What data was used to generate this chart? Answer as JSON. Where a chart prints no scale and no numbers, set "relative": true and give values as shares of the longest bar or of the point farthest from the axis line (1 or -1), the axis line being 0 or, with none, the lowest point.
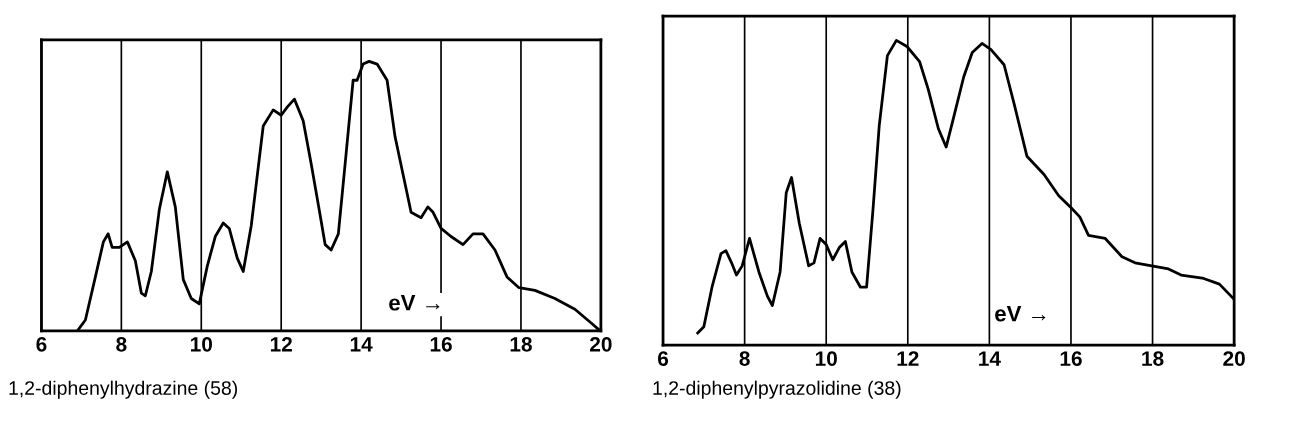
{
  "chart_data": [
    {
      "type": "line",
      "title": "1,2-diphenylhydrazine (58)",
      "relative": true,
      "xlim": [
        6,
        20
      ],
      "xticks": [
        6,
        8,
        10,
        12,
        14,
        16,
        18,
        20
      ],
      "grid": "x",
      "legend": false,
      "annotations": [
        "eV →"
      ],
      "series": [
        {
          "color": "#000000",
          "x": [
            6.9,
            7.1,
            7.35,
            7.55,
            7.67,
            7.77,
            7.95,
            8.15,
            8.35,
            8.5,
            8.6,
            8.75,
            8.95,
            9.15,
            9.35,
            9.55,
            9.75,
            9.95,
            10.15,
            10.35,
            10.55,
            10.7,
            10.9,
            11.05,
            11.25,
            11.55,
            11.8,
            12.0,
            12.15,
            12.33,
            12.55,
            12.75,
            12.95,
            13.1,
            13.25,
            13.43,
            13.6,
            13.8,
            13.9,
            14.05,
            14.2,
            14.4,
            14.65,
            14.85,
            15.05,
            15.25,
            15.5,
            15.67,
            15.8,
            16.0,
            16.25,
            16.55,
            16.8,
            17.05,
            17.35,
            17.65,
            17.95,
            18.35,
            18.85,
            19.35,
            19.75,
            19.95
          ],
          "values": [
            0,
            0.04,
            0.2,
            0.33,
            0.36,
            0.31,
            0.31,
            0.33,
            0.26,
            0.14,
            0.13,
            0.22,
            0.45,
            0.59,
            0.46,
            0.19,
            0.12,
            0.1,
            0.24,
            0.35,
            0.4,
            0.38,
            0.27,
            0.22,
            0.39,
            0.76,
            0.82,
            0.8,
            0.83,
            0.86,
            0.78,
            0.62,
            0.45,
            0.32,
            0.3,
            0.36,
            0.62,
            0.93,
            0.93,
            0.99,
            1.0,
            0.99,
            0.93,
            0.72,
            0.58,
            0.44,
            0.42,
            0.46,
            0.44,
            0.38,
            0.35,
            0.32,
            0.36,
            0.36,
            0.3,
            0.2,
            0.16,
            0.15,
            0.12,
            0.08,
            0.03,
            0.004
          ]
        }
      ]
    },
    {
      "type": "line",
      "title": "1,2-diphenylpyrazolidine (38)",
      "relative": true,
      "xlim": [
        6,
        20
      ],
      "xticks": [
        6,
        8,
        10,
        12,
        14,
        16,
        18,
        20
      ],
      "grid": "x",
      "legend": false,
      "annotations": [
        "eV →"
      ],
      "series": [
        {
          "color": "#000000",
          "x": [
            6.85,
            7.0,
            7.2,
            7.42,
            7.54,
            7.68,
            7.8,
            7.94,
            8.12,
            8.35,
            8.56,
            8.68,
            8.87,
            9.02,
            9.15,
            9.34,
            9.57,
            9.7,
            9.85,
            10.0,
            10.16,
            10.32,
            10.47,
            10.63,
            10.84,
            10.99,
            11.15,
            11.3,
            11.5,
            11.72,
            11.98,
            12.29,
            12.5,
            12.75,
            12.94,
            13.11,
            13.37,
            13.58,
            13.82,
            14.04,
            14.36,
            14.61,
            14.92,
            15.34,
            15.7,
            16.01,
            16.22,
            16.43,
            16.84,
            17.25,
            17.57,
            17.98,
            18.39,
            18.7,
            19.22,
            19.64,
            20.0
          ],
          "values": [
            0.04,
            0.06,
            0.19,
            0.3,
            0.31,
            0.27,
            0.23,
            0.26,
            0.35,
            0.24,
            0.16,
            0.13,
            0.24,
            0.5,
            0.55,
            0.4,
            0.26,
            0.27,
            0.35,
            0.33,
            0.28,
            0.32,
            0.34,
            0.24,
            0.19,
            0.19,
            0.45,
            0.72,
            0.95,
            1.0,
            0.98,
            0.93,
            0.84,
            0.71,
            0.65,
            0.74,
            0.88,
            0.96,
            0.99,
            0.97,
            0.92,
            0.79,
            0.62,
            0.56,
            0.49,
            0.45,
            0.42,
            0.36,
            0.35,
            0.29,
            0.27,
            0.26,
            0.25,
            0.23,
            0.22,
            0.2,
            0.15
          ]
        }
      ]
    }
  ]
}
